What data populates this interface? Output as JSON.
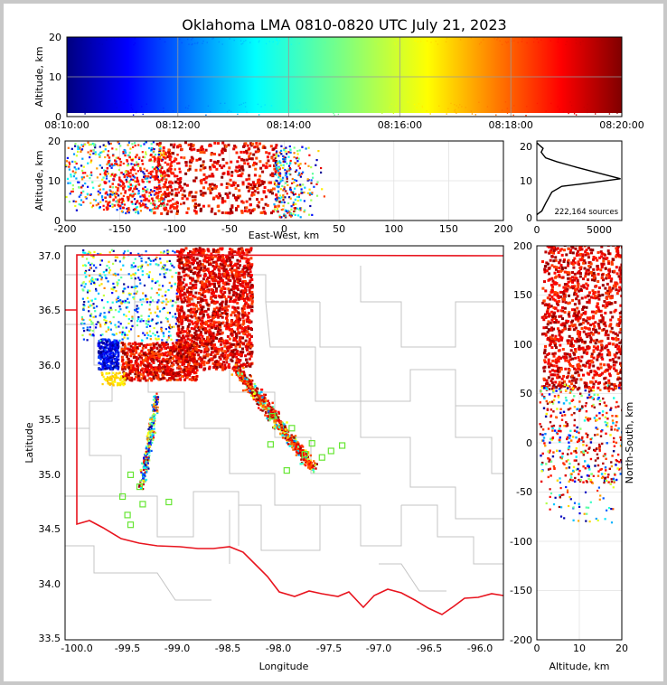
{
  "title": "Oklahoma LMA 0810-0820 UTC July 21, 2023",
  "source_count_label": "222,164 sources",
  "chart_data": [
    {
      "panel": "altitude-vs-time",
      "type": "scatter",
      "ylabel": "Altitude, km",
      "xlim": [
        "08:10:00",
        "08:20:00"
      ],
      "ylim": [
        0,
        20
      ],
      "x_tick_labels": [
        "08:10:00",
        "08:12:00",
        "08:14:00",
        "08:16:00",
        "08:18:00",
        "08:20:00"
      ],
      "y_tick_labels": [
        "0",
        "10",
        "20"
      ],
      "color_encoding": "time (jet colormap, blue=08:10 to dark red=08:20)",
      "grid": true
    },
    {
      "panel": "altitude-vs-east-west",
      "type": "scatter",
      "xlabel": "East-West, km",
      "ylabel": "Altitude, km",
      "xlim": [
        -200,
        200
      ],
      "ylim": [
        0,
        20
      ],
      "x_tick_labels": [
        "-200",
        "-150",
        "-100",
        "-50",
        "0",
        "50",
        "100",
        "150",
        "200"
      ],
      "y_tick_labels": [
        "0",
        "10",
        "20"
      ],
      "grid": true
    },
    {
      "panel": "altitude-histogram",
      "type": "line",
      "xlim": [
        0,
        6800
      ],
      "ylim": [
        0,
        20
      ],
      "x_tick_labels": [
        "0",
        "5000"
      ],
      "y_tick_labels": [
        "0",
        "10",
        "20"
      ],
      "annotation": "222,164 sources",
      "x": [
        0,
        100,
        400,
        700,
        1200,
        2000,
        3500,
        6700,
        3200,
        1600,
        700,
        350,
        500,
        150,
        0
      ],
      "y": [
        1.5,
        1.8,
        2.5,
        4.5,
        7.5,
        9.0,
        9.6,
        11.0,
        14.0,
        15.5,
        16.5,
        18.0,
        19.0,
        20.0,
        20.5
      ]
    },
    {
      "panel": "plan-view-map",
      "type": "scatter",
      "xlabel": "Longitude",
      "ylabel": "Latitude",
      "xlim": [
        -100.1,
        -95.75
      ],
      "ylim": [
        33.45,
        37.08
      ],
      "x_tick_labels": [
        "-100.0",
        "-99.5",
        "-99.0",
        "-98.5",
        "-98.0",
        "-97.5",
        "-97.0",
        "-96.5",
        "-96.0"
      ],
      "y_tick_labels": [
        "33.5",
        "34.0",
        "34.5",
        "35.0",
        "35.5",
        "36.0",
        "36.5",
        "37.0"
      ],
      "station_markers": "green open squares",
      "stations": [
        {
          "lon": -99.45,
          "lat": 34.97
        },
        {
          "lon": -99.36,
          "lat": 34.86
        },
        {
          "lon": -99.53,
          "lat": 34.77
        },
        {
          "lon": -99.33,
          "lat": 34.7
        },
        {
          "lon": -99.07,
          "lat": 34.72
        },
        {
          "lon": -99.48,
          "lat": 34.6
        },
        {
          "lon": -99.45,
          "lat": 34.51
        },
        {
          "lon": -98.06,
          "lat": 35.25
        },
        {
          "lon": -97.9,
          "lat": 35.01
        },
        {
          "lon": -97.72,
          "lat": 35.16
        },
        {
          "lon": -97.65,
          "lat": 35.26
        },
        {
          "lon": -97.55,
          "lat": 35.13
        },
        {
          "lon": -97.46,
          "lat": 35.19
        },
        {
          "lon": -97.35,
          "lat": 35.24
        },
        {
          "lon": -98.04,
          "lat": 35.51
        },
        {
          "lon": -97.85,
          "lat": 35.4
        }
      ]
    },
    {
      "panel": "north-south-vs-altitude",
      "type": "scatter",
      "xlabel": "Altitude, km",
      "ylabel": "North-South, km",
      "xlim": [
        0,
        20
      ],
      "ylim": [
        -200,
        200
      ],
      "x_tick_labels": [
        "0",
        "10",
        "20"
      ],
      "y_tick_labels": [
        "-200",
        "-150",
        "-100",
        "-50",
        "0",
        "50",
        "100",
        "150",
        "200"
      ],
      "grid": true
    }
  ]
}
